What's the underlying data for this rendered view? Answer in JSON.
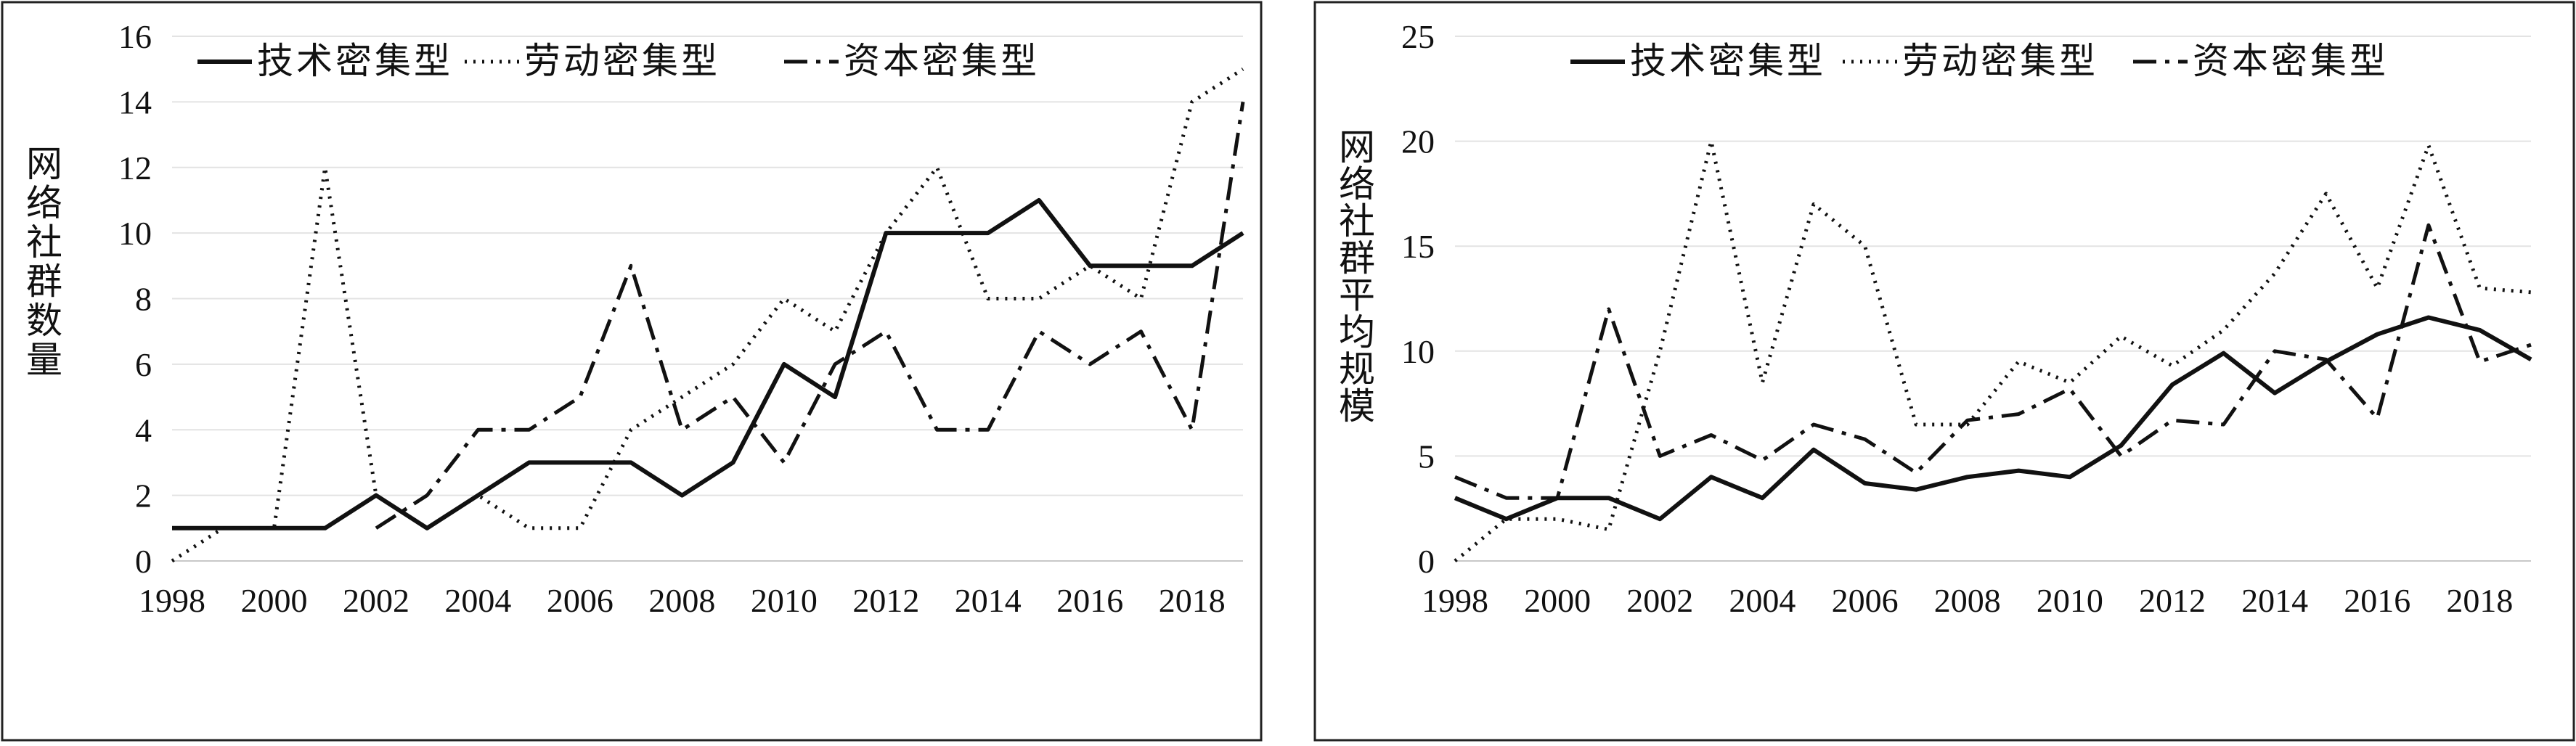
{
  "chart_data": [
    {
      "type": "line",
      "ylabel": "网络社群数量",
      "xlabel": "",
      "x": [
        1998,
        1999,
        2000,
        2001,
        2002,
        2003,
        2004,
        2005,
        2006,
        2007,
        2008,
        2009,
        2010,
        2011,
        2012,
        2013,
        2014,
        2015,
        2016,
        2017,
        2018,
        2019
      ],
      "xticks": [
        1998,
        2000,
        2002,
        2004,
        2006,
        2008,
        2010,
        2012,
        2014,
        2016,
        2018
      ],
      "ylim": [
        0,
        16
      ],
      "yticks": [
        0,
        2,
        4,
        6,
        8,
        10,
        12,
        14,
        16
      ],
      "grid": true,
      "legend_position": "top",
      "series": [
        {
          "name": "技术密集型",
          "style": "solid",
          "values": [
            1,
            1,
            1,
            1,
            2,
            1,
            2,
            3,
            3,
            3,
            2,
            3,
            6,
            5,
            10,
            10,
            10,
            11,
            9,
            9,
            9,
            10
          ]
        },
        {
          "name": "劳动密集型",
          "style": "dotted",
          "values": [
            0,
            1,
            1,
            12,
            2,
            1,
            2,
            1,
            1,
            4,
            5,
            6,
            8,
            7,
            10,
            12,
            8,
            8,
            9,
            8,
            14,
            15
          ]
        },
        {
          "name": "资本密集型",
          "style": "dash-dot",
          "values": [
            null,
            null,
            null,
            null,
            1,
            2,
            4,
            4,
            5,
            9,
            4,
            5,
            3,
            6,
            7,
            4,
            4,
            7,
            6,
            7,
            4,
            14
          ]
        }
      ]
    },
    {
      "type": "line",
      "ylabel": "网络社群平均规模",
      "xlabel": "",
      "x": [
        1998,
        1999,
        2000,
        2001,
        2002,
        2003,
        2004,
        2005,
        2006,
        2007,
        2008,
        2009,
        2010,
        2011,
        2012,
        2013,
        2014,
        2015,
        2016,
        2017,
        2018,
        2019
      ],
      "xticks": [
        1998,
        2000,
        2002,
        2004,
        2006,
        2008,
        2010,
        2012,
        2014,
        2016,
        2018
      ],
      "ylim": [
        0,
        25
      ],
      "yticks": [
        0,
        5,
        10,
        15,
        20,
        25
      ],
      "grid": true,
      "legend_position": "top",
      "series": [
        {
          "name": "技术密集型",
          "style": "solid",
          "values": [
            3,
            2,
            3,
            3,
            2,
            4,
            3,
            5.3,
            3.7,
            3.4,
            4,
            4.3,
            4,
            5.5,
            8.4,
            9.9,
            8,
            9.5,
            10.8,
            11.6,
            11,
            9.6
          ]
        },
        {
          "name": "劳动密集型",
          "style": "dotted",
          "values": [
            0,
            2,
            2,
            1.5,
            10,
            20,
            8.5,
            17,
            15,
            6.5,
            6.5,
            9.5,
            8.5,
            10.7,
            9.3,
            11,
            13.7,
            17.5,
            13,
            19.8,
            13,
            12.8
          ]
        },
        {
          "name": "资本密集型",
          "style": "dash-dot",
          "values": [
            4,
            3,
            3,
            12,
            5,
            6,
            4.8,
            6.5,
            5.8,
            4.2,
            6.7,
            7,
            8.2,
            5,
            6.7,
            6.5,
            10,
            9.6,
            6.8,
            16,
            9.5,
            10.3
          ]
        }
      ]
    }
  ]
}
